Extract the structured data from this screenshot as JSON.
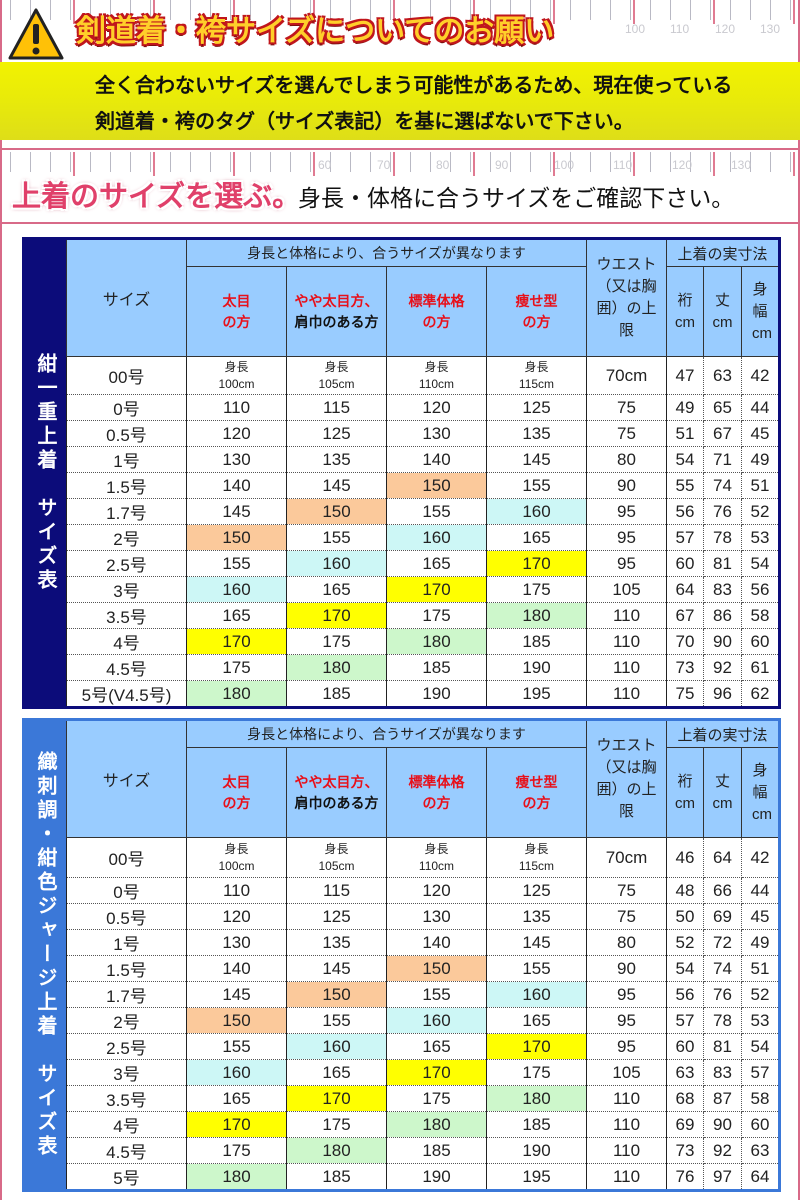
{
  "header": {
    "ruler_top_labels": [
      "100",
      "110",
      "120",
      "130"
    ],
    "title": "剣道着・袴サイズについてのお願い",
    "notice_line1": "全く合わないサイズを選んでしまう可能性があるため、現在使っている",
    "notice_line2": "剣道着・袴のタグ（サイズ表記）を基に選ばないで下さい。"
  },
  "section": {
    "ruler_labels": [
      "60",
      "70",
      "80",
      "90",
      "100",
      "110",
      "120",
      "130"
    ],
    "title": "上着のサイズを選ぶ。",
    "subtitle": "身長・体格に合うサイズをご確認下さい。"
  },
  "colors": {
    "orange": "#fbc99b",
    "cyan": "#cdf7f6",
    "yellow": "#ffff00",
    "green": "#cdf7cb",
    "header": "#99ccff",
    "navy": "#0c0c7a",
    "blue": "#3b78d8",
    "red_text": "#e8101a"
  },
  "headers": {
    "size": "サイズ",
    "group": "身長と体格により、合うサイズが異なります",
    "body_types": [
      {
        "l1": "太目",
        "l2": "の方",
        "color": "red"
      },
      {
        "l1": "やや太目方、",
        "l2": "肩巾のある方",
        "color": "mixed"
      },
      {
        "l1": "標準体格",
        "l2": "の方",
        "color": "red"
      },
      {
        "l1": "痩せ型",
        "l2": "の方",
        "color": "red"
      }
    ],
    "waist": "ウエスト（又は胸囲）の上限",
    "actual": "上着の実寸法",
    "yuki": "裄 cm",
    "take": "丈 cm",
    "mihaba": "身幅 cm"
  },
  "tables": [
    {
      "side_label": "紺一重上着　サイズ表",
      "rows": [
        {
          "size": "00号",
          "h": [
            "身長 100cm",
            "身長 105cm",
            "身長 110cm",
            "身長 115cm"
          ],
          "waist": "70cm",
          "yuki": "47",
          "take": "63",
          "mihaba": "42",
          "hl": [
            null,
            null,
            null,
            null
          ]
        },
        {
          "size": "0号",
          "h": [
            "110",
            "115",
            "120",
            "125"
          ],
          "waist": "75",
          "yuki": "49",
          "take": "65",
          "mihaba": "44",
          "hl": [
            null,
            null,
            null,
            null
          ]
        },
        {
          "size": "0.5号",
          "h": [
            "120",
            "125",
            "130",
            "135"
          ],
          "waist": "75",
          "yuki": "51",
          "take": "67",
          "mihaba": "45",
          "hl": [
            null,
            null,
            null,
            null
          ]
        },
        {
          "size": "1号",
          "h": [
            "130",
            "135",
            "140",
            "145"
          ],
          "waist": "80",
          "yuki": "54",
          "take": "71",
          "mihaba": "49",
          "hl": [
            null,
            null,
            null,
            null
          ]
        },
        {
          "size": "1.5号",
          "h": [
            "140",
            "145",
            "150",
            "155"
          ],
          "waist": "90",
          "yuki": "55",
          "take": "74",
          "mihaba": "51",
          "hl": [
            null,
            null,
            "orange",
            null
          ]
        },
        {
          "size": "1.7号",
          "h": [
            "145",
            "150",
            "155",
            "160"
          ],
          "waist": "95",
          "yuki": "56",
          "take": "76",
          "mihaba": "52",
          "hl": [
            null,
            "orange",
            null,
            "cyan"
          ]
        },
        {
          "size": "2号",
          "h": [
            "150",
            "155",
            "160",
            "165"
          ],
          "waist": "95",
          "yuki": "57",
          "take": "78",
          "mihaba": "53",
          "hl": [
            "orange",
            null,
            "cyan",
            null
          ]
        },
        {
          "size": "2.5号",
          "h": [
            "155",
            "160",
            "165",
            "170"
          ],
          "waist": "95",
          "yuki": "60",
          "take": "81",
          "mihaba": "54",
          "hl": [
            null,
            "cyan",
            null,
            "yellow"
          ]
        },
        {
          "size": "3号",
          "h": [
            "160",
            "165",
            "170",
            "175"
          ],
          "waist": "105",
          "yuki": "64",
          "take": "83",
          "mihaba": "56",
          "hl": [
            "cyan",
            null,
            "yellow",
            null
          ]
        },
        {
          "size": "3.5号",
          "h": [
            "165",
            "170",
            "175",
            "180"
          ],
          "waist": "110",
          "yuki": "67",
          "take": "86",
          "mihaba": "58",
          "hl": [
            null,
            "yellow",
            null,
            "green"
          ]
        },
        {
          "size": "4号",
          "h": [
            "170",
            "175",
            "180",
            "185"
          ],
          "waist": "110",
          "yuki": "70",
          "take": "90",
          "mihaba": "60",
          "hl": [
            "yellow",
            null,
            "green",
            null
          ]
        },
        {
          "size": "4.5号",
          "h": [
            "175",
            "180",
            "185",
            "190"
          ],
          "waist": "110",
          "yuki": "73",
          "take": "92",
          "mihaba": "61",
          "hl": [
            null,
            "green",
            null,
            null
          ]
        },
        {
          "size": "5号(V4.5号)",
          "h": [
            "180",
            "185",
            "190",
            "195"
          ],
          "waist": "110",
          "yuki": "75",
          "take": "96",
          "mihaba": "62",
          "hl": [
            "green",
            null,
            null,
            null
          ]
        }
      ]
    },
    {
      "side_label": "織刺調・紺色ジャージ上着　サイズ表",
      "rows": [
        {
          "size": "00号",
          "h": [
            "身長 100cm",
            "身長 105cm",
            "身長 110cm",
            "身長 115cm"
          ],
          "waist": "70cm",
          "yuki": "46",
          "take": "64",
          "mihaba": "42",
          "hl": [
            null,
            null,
            null,
            null
          ]
        },
        {
          "size": "0号",
          "h": [
            "110",
            "115",
            "120",
            "125"
          ],
          "waist": "75",
          "yuki": "48",
          "take": "66",
          "mihaba": "44",
          "hl": [
            null,
            null,
            null,
            null
          ]
        },
        {
          "size": "0.5号",
          "h": [
            "120",
            "125",
            "130",
            "135"
          ],
          "waist": "75",
          "yuki": "50",
          "take": "69",
          "mihaba": "45",
          "hl": [
            null,
            null,
            null,
            null
          ]
        },
        {
          "size": "1号",
          "h": [
            "130",
            "135",
            "140",
            "145"
          ],
          "waist": "80",
          "yuki": "52",
          "take": "72",
          "mihaba": "49",
          "hl": [
            null,
            null,
            null,
            null
          ]
        },
        {
          "size": "1.5号",
          "h": [
            "140",
            "145",
            "150",
            "155"
          ],
          "waist": "90",
          "yuki": "54",
          "take": "74",
          "mihaba": "51",
          "hl": [
            null,
            null,
            "orange",
            null
          ]
        },
        {
          "size": "1.7号",
          "h": [
            "145",
            "150",
            "155",
            "160"
          ],
          "waist": "95",
          "yuki": "56",
          "take": "76",
          "mihaba": "52",
          "hl": [
            null,
            "orange",
            null,
            "cyan"
          ]
        },
        {
          "size": "2号",
          "h": [
            "150",
            "155",
            "160",
            "165"
          ],
          "waist": "95",
          "yuki": "57",
          "take": "78",
          "mihaba": "53",
          "hl": [
            "orange",
            null,
            "cyan",
            null
          ]
        },
        {
          "size": "2.5号",
          "h": [
            "155",
            "160",
            "165",
            "170"
          ],
          "waist": "95",
          "yuki": "60",
          "take": "81",
          "mihaba": "54",
          "hl": [
            null,
            "cyan",
            null,
            "yellow"
          ]
        },
        {
          "size": "3号",
          "h": [
            "160",
            "165",
            "170",
            "175"
          ],
          "waist": "105",
          "yuki": "63",
          "take": "83",
          "mihaba": "57",
          "hl": [
            "cyan",
            null,
            "yellow",
            null
          ]
        },
        {
          "size": "3.5号",
          "h": [
            "165",
            "170",
            "175",
            "180"
          ],
          "waist": "110",
          "yuki": "68",
          "take": "87",
          "mihaba": "58",
          "hl": [
            null,
            "yellow",
            null,
            "green"
          ]
        },
        {
          "size": "4号",
          "h": [
            "170",
            "175",
            "180",
            "185"
          ],
          "waist": "110",
          "yuki": "69",
          "take": "90",
          "mihaba": "60",
          "hl": [
            "yellow",
            null,
            "green",
            null
          ]
        },
        {
          "size": "4.5号",
          "h": [
            "175",
            "180",
            "185",
            "190"
          ],
          "waist": "110",
          "yuki": "73",
          "take": "92",
          "mihaba": "63",
          "hl": [
            null,
            "green",
            null,
            null
          ]
        },
        {
          "size": "5号",
          "h": [
            "180",
            "185",
            "190",
            "195"
          ],
          "waist": "110",
          "yuki": "76",
          "take": "97",
          "mihaba": "64",
          "hl": [
            "green",
            null,
            null,
            null
          ]
        }
      ]
    }
  ]
}
